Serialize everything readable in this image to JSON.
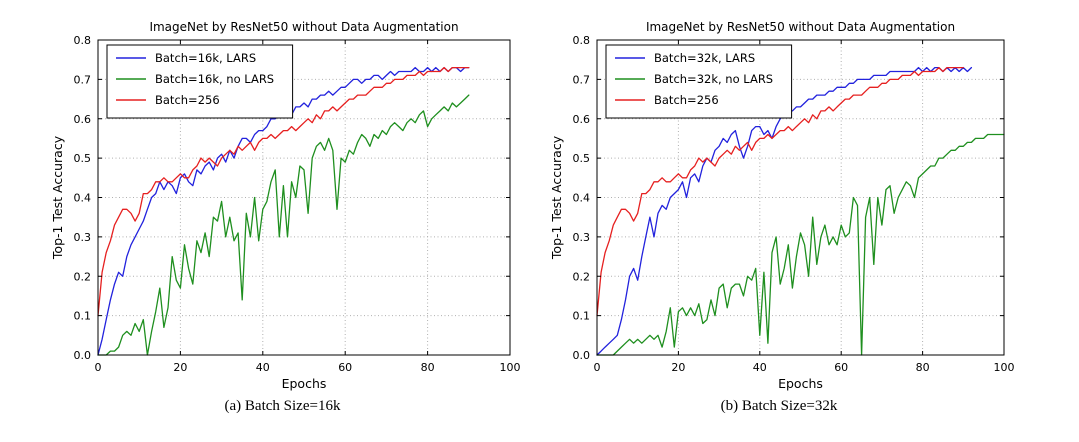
{
  "captions": [
    {
      "label": "(a) Batch Size=16k"
    },
    {
      "label": "(b) Batch Size=32k"
    }
  ],
  "colors": {
    "lars": "#2222dd",
    "no_lars": "#1f8f1f",
    "baseline": "#e62020",
    "grid": "#b0b0b0",
    "frame": "#000000"
  },
  "chart_data": [
    {
      "type": "line",
      "title": "ImageNet by ResNet50 without Data Augmentation",
      "xlabel": "Epochs",
      "ylabel": "Top-1 Test Accuracy",
      "xlim": [
        0,
        100
      ],
      "ylim": [
        0.0,
        0.8
      ],
      "xticks": [
        0,
        20,
        40,
        60,
        80,
        100
      ],
      "yticks": [
        0.0,
        0.1,
        0.2,
        0.3,
        0.4,
        0.5,
        0.6,
        0.7,
        0.8
      ],
      "grid": true,
      "legend_position": "upper left",
      "series": [
        {
          "name": "Batch=16k, LARS",
          "color": "#2222dd",
          "x_start": 0,
          "x_step": 1,
          "values": [
            0.0,
            0.04,
            0.09,
            0.14,
            0.18,
            0.21,
            0.2,
            0.25,
            0.28,
            0.3,
            0.32,
            0.34,
            0.37,
            0.4,
            0.41,
            0.44,
            0.42,
            0.44,
            0.43,
            0.41,
            0.45,
            0.46,
            0.44,
            0.43,
            0.47,
            0.46,
            0.48,
            0.49,
            0.47,
            0.5,
            0.51,
            0.49,
            0.52,
            0.5,
            0.53,
            0.55,
            0.55,
            0.54,
            0.56,
            0.57,
            0.57,
            0.58,
            0.6,
            0.6,
            0.61,
            0.61,
            0.62,
            0.61,
            0.63,
            0.63,
            0.64,
            0.63,
            0.65,
            0.65,
            0.66,
            0.66,
            0.67,
            0.66,
            0.67,
            0.68,
            0.68,
            0.69,
            0.7,
            0.7,
            0.69,
            0.7,
            0.7,
            0.71,
            0.71,
            0.7,
            0.71,
            0.72,
            0.71,
            0.72,
            0.72,
            0.72,
            0.72,
            0.73,
            0.72,
            0.72,
            0.73,
            0.72,
            0.73,
            0.72,
            0.73,
            0.72,
            0.73,
            0.73,
            0.72,
            0.73,
            0.73
          ]
        },
        {
          "name": "Batch=16k, no LARS",
          "color": "#1f8f1f",
          "x_start": 0,
          "x_step": 1,
          "values": [
            0.0,
            0.0,
            0.0,
            0.01,
            0.01,
            0.02,
            0.05,
            0.06,
            0.05,
            0.08,
            0.06,
            0.09,
            0.0,
            0.06,
            0.11,
            0.17,
            0.07,
            0.12,
            0.25,
            0.19,
            0.17,
            0.28,
            0.22,
            0.18,
            0.29,
            0.26,
            0.31,
            0.25,
            0.35,
            0.34,
            0.39,
            0.3,
            0.35,
            0.29,
            0.31,
            0.14,
            0.36,
            0.3,
            0.4,
            0.29,
            0.37,
            0.39,
            0.44,
            0.47,
            0.3,
            0.43,
            0.3,
            0.44,
            0.4,
            0.48,
            0.47,
            0.36,
            0.5,
            0.53,
            0.54,
            0.52,
            0.55,
            0.52,
            0.37,
            0.5,
            0.49,
            0.52,
            0.51,
            0.54,
            0.56,
            0.55,
            0.53,
            0.56,
            0.55,
            0.57,
            0.56,
            0.58,
            0.59,
            0.58,
            0.57,
            0.59,
            0.6,
            0.59,
            0.61,
            0.62,
            0.58,
            0.6,
            0.61,
            0.62,
            0.63,
            0.62,
            0.64,
            0.63,
            0.64,
            0.65,
            0.66
          ]
        },
        {
          "name": "Batch=256",
          "color": "#e62020",
          "x_start": 0,
          "x_step": 1,
          "values": [
            0.1,
            0.21,
            0.26,
            0.29,
            0.33,
            0.35,
            0.37,
            0.37,
            0.36,
            0.34,
            0.36,
            0.41,
            0.41,
            0.42,
            0.44,
            0.44,
            0.45,
            0.44,
            0.44,
            0.45,
            0.46,
            0.45,
            0.45,
            0.47,
            0.48,
            0.5,
            0.49,
            0.5,
            0.49,
            0.48,
            0.5,
            0.51,
            0.52,
            0.51,
            0.53,
            0.52,
            0.53,
            0.54,
            0.52,
            0.54,
            0.55,
            0.55,
            0.56,
            0.55,
            0.56,
            0.57,
            0.57,
            0.58,
            0.57,
            0.58,
            0.59,
            0.6,
            0.59,
            0.61,
            0.6,
            0.62,
            0.62,
            0.63,
            0.62,
            0.63,
            0.64,
            0.65,
            0.65,
            0.66,
            0.66,
            0.66,
            0.67,
            0.68,
            0.68,
            0.68,
            0.69,
            0.69,
            0.7,
            0.7,
            0.7,
            0.71,
            0.71,
            0.71,
            0.72,
            0.71,
            0.72,
            0.72,
            0.72,
            0.72,
            0.73,
            0.72,
            0.73,
            0.73,
            0.73,
            0.73,
            0.73
          ]
        }
      ]
    },
    {
      "type": "line",
      "title": "ImageNet by ResNet50 without Data Augmentation",
      "xlabel": "Epochs",
      "ylabel": "Top-1 Test Accuracy",
      "xlim": [
        0,
        100
      ],
      "ylim": [
        0.0,
        0.8
      ],
      "xticks": [
        0,
        20,
        40,
        60,
        80,
        100
      ],
      "yticks": [
        0.0,
        0.1,
        0.2,
        0.3,
        0.4,
        0.5,
        0.6,
        0.7,
        0.8
      ],
      "grid": true,
      "legend_position": "upper left",
      "series": [
        {
          "name": "Batch=32k, LARS",
          "color": "#2222dd",
          "x_start": 0,
          "x_step": 1,
          "values": [
            0.0,
            0.01,
            0.02,
            0.03,
            0.04,
            0.05,
            0.09,
            0.14,
            0.2,
            0.22,
            0.19,
            0.25,
            0.3,
            0.35,
            0.3,
            0.36,
            0.38,
            0.37,
            0.4,
            0.41,
            0.42,
            0.44,
            0.4,
            0.45,
            0.46,
            0.44,
            0.48,
            0.5,
            0.49,
            0.52,
            0.53,
            0.55,
            0.54,
            0.56,
            0.57,
            0.53,
            0.5,
            0.53,
            0.57,
            0.58,
            0.58,
            0.56,
            0.57,
            0.55,
            0.58,
            0.6,
            0.61,
            0.62,
            0.62,
            0.63,
            0.63,
            0.64,
            0.65,
            0.65,
            0.66,
            0.66,
            0.66,
            0.67,
            0.67,
            0.68,
            0.68,
            0.68,
            0.69,
            0.69,
            0.7,
            0.7,
            0.7,
            0.7,
            0.71,
            0.71,
            0.71,
            0.71,
            0.72,
            0.72,
            0.72,
            0.72,
            0.72,
            0.72,
            0.72,
            0.73,
            0.72,
            0.73,
            0.72,
            0.73,
            0.73,
            0.72,
            0.73,
            0.72,
            0.73,
            0.72,
            0.73,
            0.72,
            0.73
          ]
        },
        {
          "name": "Batch=32k, no LARS",
          "color": "#1f8f1f",
          "x_start": 0,
          "x_step": 1,
          "values": [
            0.0,
            0.0,
            0.0,
            0.0,
            0.0,
            0.01,
            0.02,
            0.03,
            0.04,
            0.03,
            0.04,
            0.03,
            0.04,
            0.05,
            0.04,
            0.05,
            0.02,
            0.06,
            0.12,
            0.02,
            0.11,
            0.12,
            0.1,
            0.12,
            0.1,
            0.13,
            0.08,
            0.09,
            0.14,
            0.1,
            0.17,
            0.18,
            0.12,
            0.17,
            0.18,
            0.18,
            0.15,
            0.2,
            0.19,
            0.22,
            0.05,
            0.21,
            0.03,
            0.26,
            0.3,
            0.18,
            0.22,
            0.28,
            0.17,
            0.25,
            0.31,
            0.28,
            0.2,
            0.35,
            0.23,
            0.3,
            0.33,
            0.28,
            0.3,
            0.28,
            0.33,
            0.3,
            0.31,
            0.4,
            0.38,
            0.0,
            0.35,
            0.4,
            0.23,
            0.4,
            0.33,
            0.42,
            0.43,
            0.36,
            0.4,
            0.42,
            0.44,
            0.43,
            0.4,
            0.45,
            0.46,
            0.47,
            0.48,
            0.48,
            0.5,
            0.5,
            0.51,
            0.52,
            0.52,
            0.53,
            0.53,
            0.54,
            0.54,
            0.55,
            0.55,
            0.55,
            0.56,
            0.56,
            0.56,
            0.56,
            0.56
          ]
        },
        {
          "name": "Batch=256",
          "color": "#e62020",
          "x_start": 0,
          "x_step": 1,
          "values": [
            0.1,
            0.21,
            0.26,
            0.29,
            0.33,
            0.35,
            0.37,
            0.37,
            0.36,
            0.34,
            0.36,
            0.41,
            0.41,
            0.42,
            0.44,
            0.44,
            0.45,
            0.44,
            0.44,
            0.45,
            0.46,
            0.45,
            0.45,
            0.47,
            0.48,
            0.5,
            0.49,
            0.5,
            0.49,
            0.48,
            0.5,
            0.51,
            0.52,
            0.51,
            0.53,
            0.52,
            0.53,
            0.54,
            0.52,
            0.54,
            0.55,
            0.55,
            0.56,
            0.55,
            0.56,
            0.57,
            0.57,
            0.58,
            0.57,
            0.58,
            0.59,
            0.6,
            0.59,
            0.61,
            0.6,
            0.62,
            0.62,
            0.63,
            0.62,
            0.63,
            0.64,
            0.65,
            0.65,
            0.66,
            0.66,
            0.66,
            0.67,
            0.68,
            0.68,
            0.68,
            0.69,
            0.69,
            0.7,
            0.7,
            0.7,
            0.71,
            0.71,
            0.71,
            0.72,
            0.71,
            0.72,
            0.72,
            0.72,
            0.72,
            0.73,
            0.72,
            0.73,
            0.73,
            0.73,
            0.73,
            0.73
          ]
        }
      ]
    }
  ]
}
